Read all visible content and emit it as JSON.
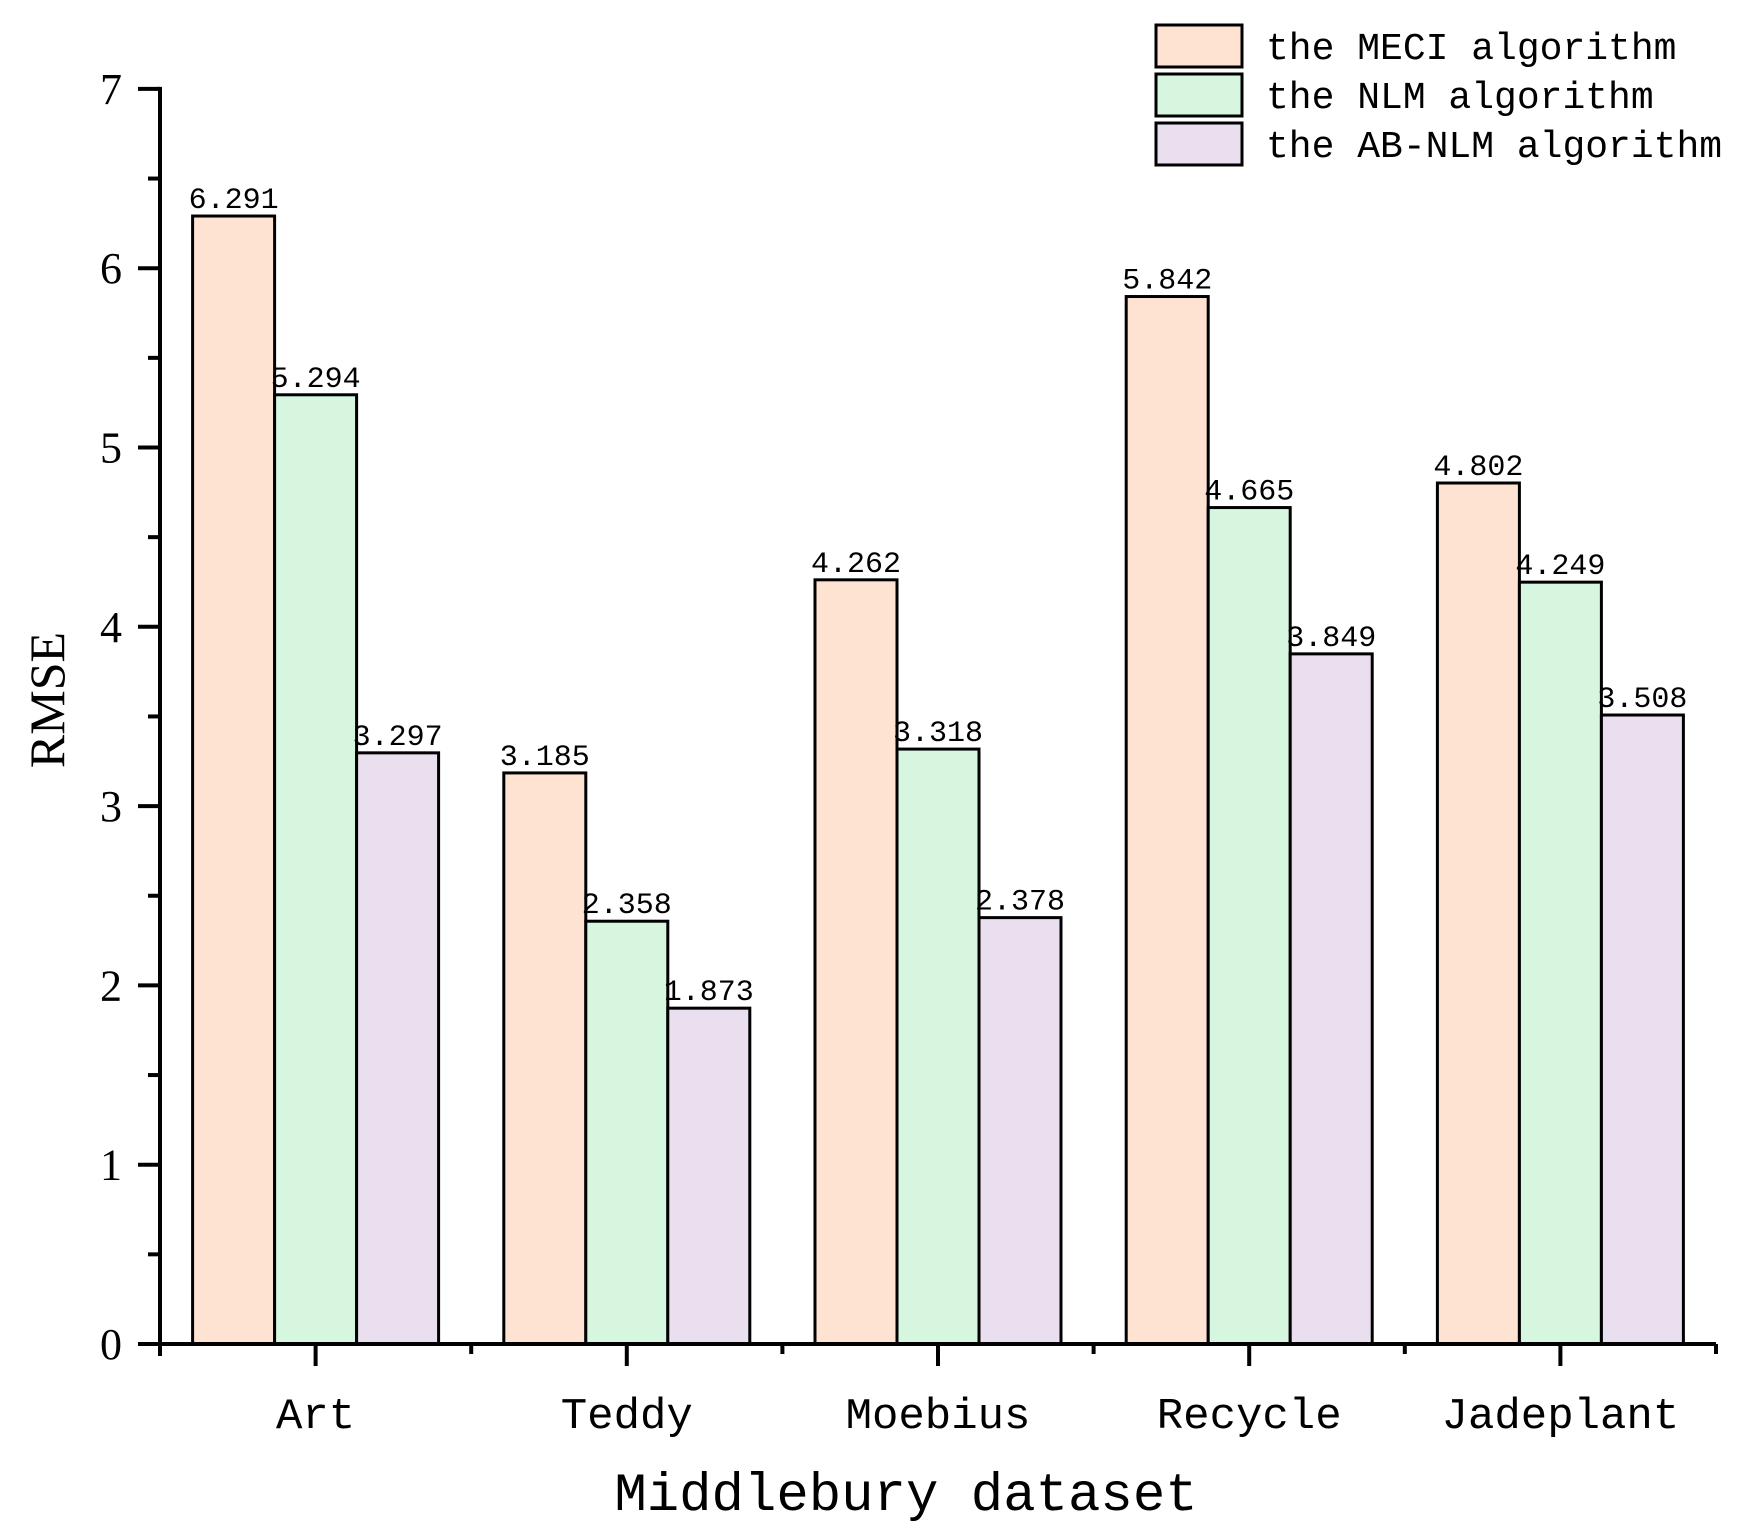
{
  "chart_data": {
    "type": "bar",
    "title": "",
    "xlabel": "Middlebury dataset",
    "ylabel": "RMSE",
    "ylim": [
      0,
      7
    ],
    "yticks": [
      0,
      1,
      2,
      3,
      4,
      5,
      6,
      7
    ],
    "categories": [
      "Art",
      "Teddy",
      "Moebius",
      "Recycle",
      "Jadeplant"
    ],
    "series": [
      {
        "name": "the MECI algorithm",
        "color": "#FFE3D2",
        "values": [
          6.291,
          3.185,
          4.262,
          5.842,
          4.802
        ],
        "labels": [
          "6.291",
          "3.185",
          "4.262",
          "5.842",
          "4.802"
        ]
      },
      {
        "name": "the NLM algorithm",
        "color": "#D6F6DF",
        "values": [
          5.294,
          2.358,
          3.318,
          4.665,
          4.249
        ],
        "labels": [
          "5.294",
          "2.358",
          "3.318",
          "4.665",
          "4.249"
        ]
      },
      {
        "name": "the AB-NLM algorithm",
        "color": "#EADFEF",
        "values": [
          3.297,
          1.873,
          2.378,
          3.849,
          3.508
        ],
        "labels": [
          "3.297",
          "1.873",
          "2.378",
          "3.849",
          "3.508"
        ]
      }
    ],
    "legend_position": "top-right",
    "grid": false
  }
}
